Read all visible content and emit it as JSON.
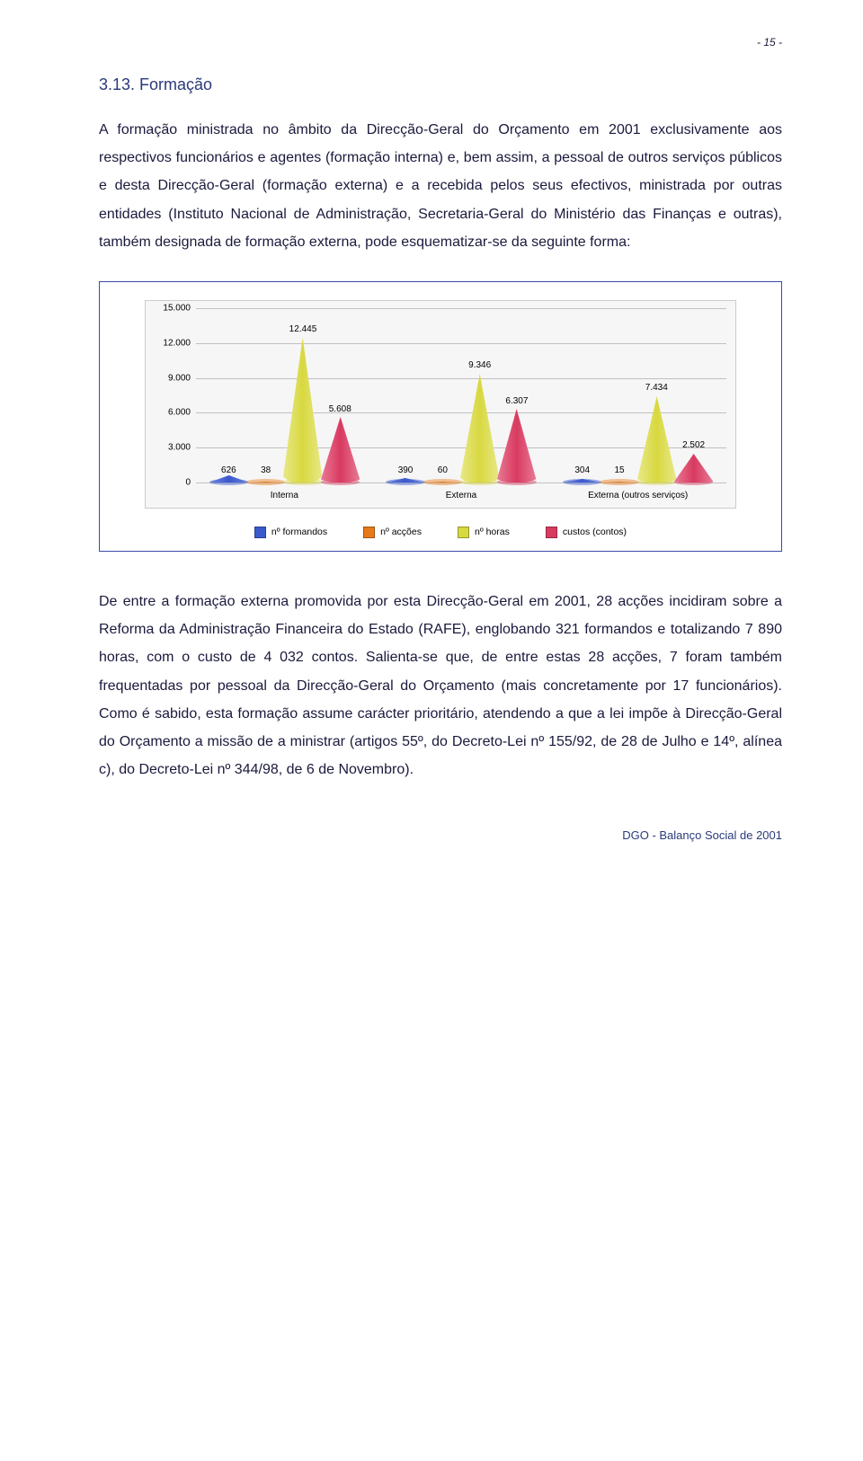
{
  "page_number_label": "- 15 -",
  "heading": "3.13. Formação",
  "para1": "A formação ministrada no âmbito da Direcção-Geral do Orçamento em 2001 exclusivamente aos respectivos funcionários e agentes (formação interna) e, bem assim, a pessoal de outros serviços públicos e desta Direcção-Geral (formação externa) e a recebida pelos seus efectivos, ministrada por outras entidades (Instituto Nacional de Administração, Secretaria-Geral do Ministério das Finanças e outras), também designada de formação externa, pode esquematizar-se da seguinte forma:",
  "para2": "De entre a formação externa promovida por esta Direcção-Geral em 2001, 28 acções incidiram sobre a Reforma da Administração Financeira do Estado (RAFE), englobando 321 formandos e totalizando 7 890 horas, com o custo de 4 032 contos. Salienta-se que, de entre estas 28 acções, 7 foram também frequentadas por pessoal da Direcção-Geral do Orçamento (mais concretamente por 17 funcionários). Como é sabido, esta formação assume carácter prioritário, atendendo a que a lei impõe à Direcção-Geral do Orçamento a missão de a ministrar (artigos 55º, do Decreto-Lei nº 155/92, de 28 de Julho e 14º, alínea c), do Decreto-Lei nº 344/98, de 6 de Novembro).",
  "footer": "DGO - Balanço Social de 2001",
  "chart": {
    "type": "cone-bar",
    "y_axis": {
      "ticks": [
        0,
        3000,
        6000,
        9000,
        12000,
        15000
      ],
      "tick_labels": [
        "0",
        "3.000",
        "6.000",
        "9.000",
        "12.000",
        "15.000"
      ],
      "max": 15000,
      "label_fontsize": 10
    },
    "categories": [
      {
        "label": "Interna",
        "values": [
          626,
          38,
          12445,
          5608
        ],
        "value_labels": [
          "626",
          "38",
          "12.445",
          "5.608"
        ]
      },
      {
        "label": "Externa",
        "values": [
          390,
          60,
          9346,
          6307
        ],
        "value_labels": [
          "390",
          "60",
          "9.346",
          "6.307"
        ]
      },
      {
        "label": "Externa (outros serviços)",
        "values": [
          304,
          15,
          7434,
          2502
        ],
        "value_labels": [
          "304",
          "15",
          "7.434",
          "2.502"
        ]
      }
    ],
    "series": [
      {
        "name": "nº formandos",
        "color": "#3a5acc",
        "light": "#6a82e0"
      },
      {
        "name": "nº acções",
        "color": "#e67a1a",
        "light": "#f4a860"
      },
      {
        "name": "nº horas",
        "color": "#d8d840",
        "light": "#e8e888"
      },
      {
        "name": "custos (contos)",
        "color": "#d83a60",
        "light": "#e87a95"
      }
    ],
    "background_color": "#f6f6f6",
    "grid_color": "#c0c0c0",
    "border_color": "#3a4aa8",
    "legend_fontsize": 10.5
  }
}
